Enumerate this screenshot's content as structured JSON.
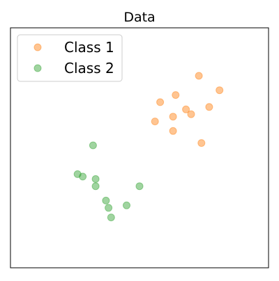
{
  "chart_data": {
    "type": "scatter",
    "title": "Data",
    "xlabel": "",
    "ylabel": "",
    "xlim": [
      0,
      10
    ],
    "ylim": [
      0,
      10
    ],
    "grid": false,
    "axes_ticks": false,
    "legend_position": "top-left",
    "series": [
      {
        "name": "Class 1",
        "color": "#ff7f0e",
        "points": [
          {
            "x": 7.3,
            "y": 8.0
          },
          {
            "x": 8.1,
            "y": 7.4
          },
          {
            "x": 6.4,
            "y": 7.2
          },
          {
            "x": 5.8,
            "y": 6.9
          },
          {
            "x": 6.3,
            "y": 6.3
          },
          {
            "x": 6.8,
            "y": 6.6
          },
          {
            "x": 7.0,
            "y": 6.4
          },
          {
            "x": 7.7,
            "y": 6.7
          },
          {
            "x": 5.6,
            "y": 6.1
          },
          {
            "x": 6.3,
            "y": 5.7
          },
          {
            "x": 7.4,
            "y": 5.2
          }
        ]
      },
      {
        "name": "Class 2",
        "color": "#2ca02c",
        "points": [
          {
            "x": 3.2,
            "y": 5.1
          },
          {
            "x": 2.6,
            "y": 3.9
          },
          {
            "x": 2.8,
            "y": 3.8
          },
          {
            "x": 3.3,
            "y": 3.7
          },
          {
            "x": 3.3,
            "y": 3.4
          },
          {
            "x": 5.0,
            "y": 3.4
          },
          {
            "x": 3.7,
            "y": 2.8
          },
          {
            "x": 3.8,
            "y": 2.5
          },
          {
            "x": 4.5,
            "y": 2.6
          },
          {
            "x": 3.9,
            "y": 2.1
          }
        ]
      }
    ]
  }
}
